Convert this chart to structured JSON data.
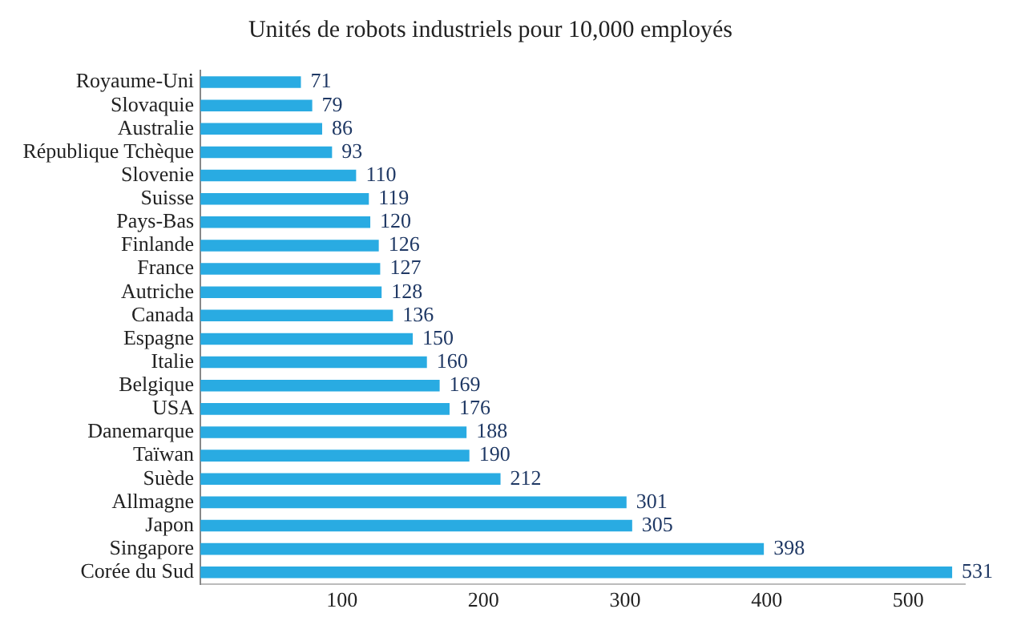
{
  "chart_data": {
    "type": "bar",
    "orientation": "horizontal",
    "title": "Unités de robots industriels pour 10,000 employés",
    "categories": [
      "Royaume-Uni",
      "Slovaquie",
      "Australie",
      "République Tchèque",
      "Slovenie",
      "Suisse",
      "Pays-Bas",
      "Finlande",
      "France",
      "Autriche",
      "Canada",
      "Espagne",
      "Italie",
      "Belgique",
      "USA",
      "Danemarque",
      "Taïwan",
      "Suède",
      "Allmagne",
      "Japon",
      "Singapore",
      "Corée du Sud"
    ],
    "values": [
      71,
      79,
      86,
      93,
      110,
      119,
      120,
      126,
      127,
      128,
      136,
      150,
      160,
      169,
      176,
      188,
      190,
      212,
      301,
      305,
      398,
      531
    ],
    "color": "#29abe2",
    "xlim": [
      0,
      540
    ],
    "xticks": [
      100,
      200,
      300,
      400,
      500
    ],
    "grid": false,
    "legend": false,
    "data_labels": true
  }
}
